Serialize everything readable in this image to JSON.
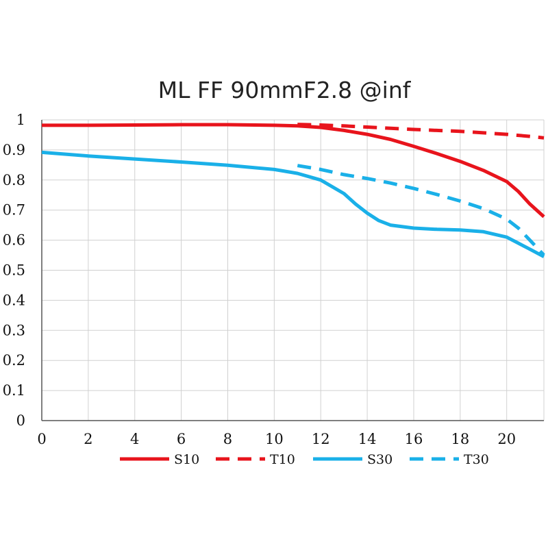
{
  "chart_data": {
    "type": "line",
    "title": "ML FF 90mmF2.8 @inf",
    "xlabel": "",
    "ylabel": "",
    "xlim": [
      0,
      21.6
    ],
    "ylim": [
      0,
      1
    ],
    "x_ticks": [
      "0",
      "2",
      "4",
      "6",
      "8",
      "10",
      "12",
      "14",
      "16",
      "18",
      "20"
    ],
    "y_ticks": [
      "0",
      "0.1",
      "0.2",
      "0.3",
      "0.4",
      "0.5",
      "0.6",
      "0.7",
      "0.8",
      "0.9",
      "1"
    ],
    "grid": true,
    "legend_position": "bottom",
    "series": [
      {
        "name": "S10",
        "color": "#e8141c",
        "dash": false,
        "points": [
          [
            0,
            0.982
          ],
          [
            2,
            0.982
          ],
          [
            4,
            0.983
          ],
          [
            6,
            0.984
          ],
          [
            8,
            0.984
          ],
          [
            10,
            0.982
          ],
          [
            11,
            0.98
          ],
          [
            12,
            0.975
          ],
          [
            13,
            0.965
          ],
          [
            14,
            0.952
          ],
          [
            15,
            0.935
          ],
          [
            16,
            0.912
          ],
          [
            17,
            0.888
          ],
          [
            18,
            0.862
          ],
          [
            19,
            0.832
          ],
          [
            20,
            0.795
          ],
          [
            20.5,
            0.762
          ],
          [
            21,
            0.72
          ],
          [
            21.6,
            0.678
          ]
        ]
      },
      {
        "name": "T10",
        "color": "#e8141c",
        "dash": true,
        "points": [
          [
            11,
            0.985
          ],
          [
            12,
            0.983
          ],
          [
            13,
            0.98
          ],
          [
            14,
            0.976
          ],
          [
            15,
            0.972
          ],
          [
            16,
            0.968
          ],
          [
            17,
            0.965
          ],
          [
            18,
            0.962
          ],
          [
            19,
            0.957
          ],
          [
            20,
            0.952
          ],
          [
            21,
            0.945
          ],
          [
            21.6,
            0.94
          ]
        ]
      },
      {
        "name": "S30",
        "color": "#1ab0e8",
        "dash": false,
        "points": [
          [
            0,
            0.892
          ],
          [
            2,
            0.88
          ],
          [
            4,
            0.87
          ],
          [
            6,
            0.86
          ],
          [
            8,
            0.849
          ],
          [
            10,
            0.835
          ],
          [
            11,
            0.822
          ],
          [
            12,
            0.8
          ],
          [
            13,
            0.755
          ],
          [
            13.5,
            0.72
          ],
          [
            14,
            0.69
          ],
          [
            14.5,
            0.665
          ],
          [
            15,
            0.65
          ],
          [
            16,
            0.64
          ],
          [
            17,
            0.636
          ],
          [
            18,
            0.634
          ],
          [
            19,
            0.628
          ],
          [
            20,
            0.61
          ],
          [
            20.5,
            0.59
          ],
          [
            21,
            0.57
          ],
          [
            21.6,
            0.545
          ]
        ]
      },
      {
        "name": "T30",
        "color": "#1ab0e8",
        "dash": true,
        "points": [
          [
            11,
            0.848
          ],
          [
            12,
            0.835
          ],
          [
            13,
            0.818
          ],
          [
            14,
            0.805
          ],
          [
            15,
            0.79
          ],
          [
            16,
            0.772
          ],
          [
            17,
            0.752
          ],
          [
            18,
            0.73
          ],
          [
            19,
            0.705
          ],
          [
            20,
            0.67
          ],
          [
            20.5,
            0.64
          ],
          [
            21,
            0.6
          ],
          [
            21.6,
            0.55
          ]
        ]
      }
    ]
  }
}
